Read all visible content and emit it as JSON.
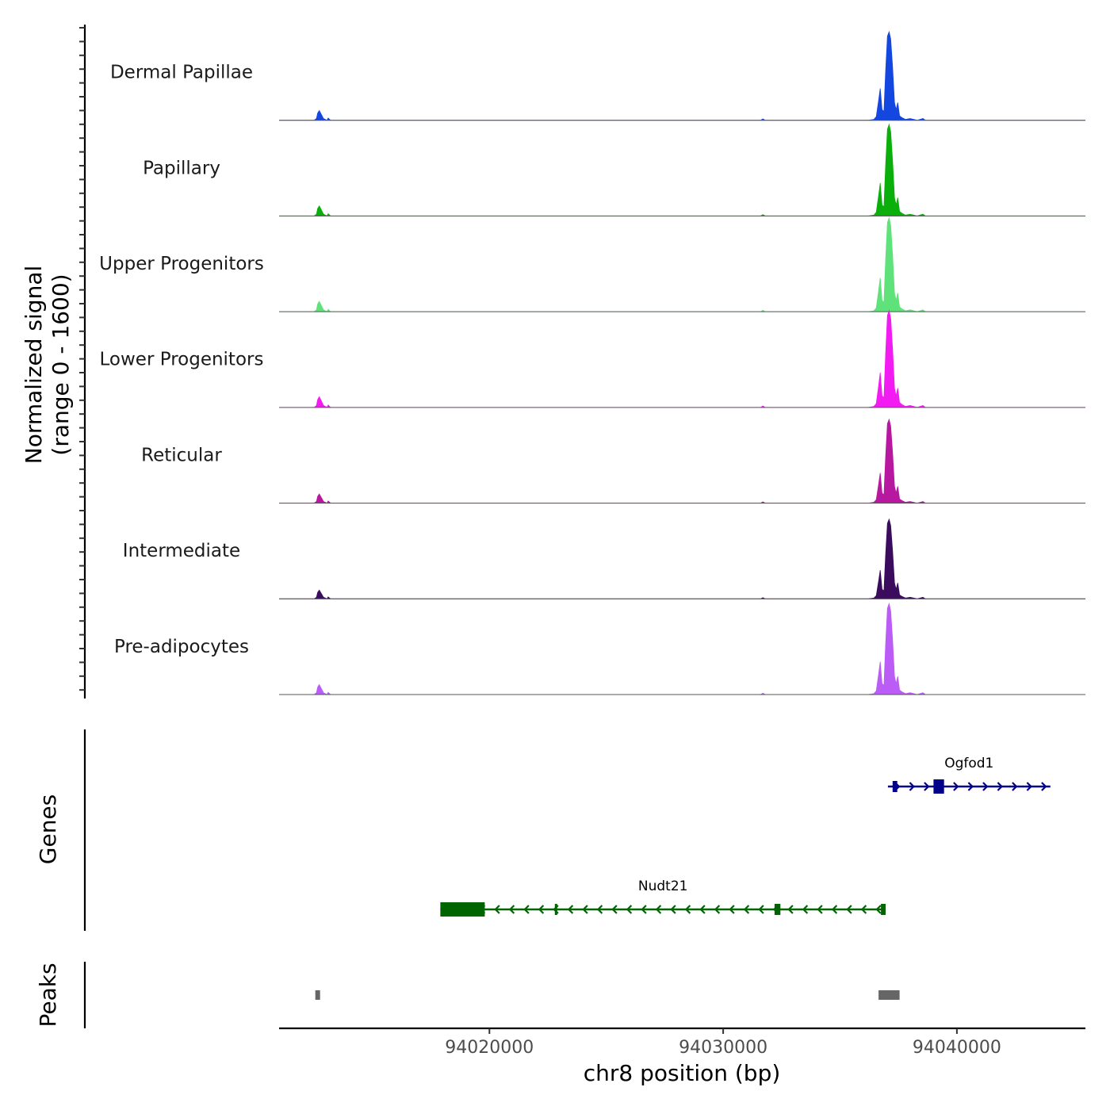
{
  "chart_data": {
    "type": "coverage",
    "genome_region": {
      "chromosome": "chr8",
      "start": 94011000,
      "end": 94045500
    },
    "y_axis": {
      "title_line1": "Normalized signal",
      "title_line2": "(range 0 - 1600)",
      "range": [
        0,
        1600
      ]
    },
    "x_axis": {
      "title": "chr8 position (bp)",
      "ticks": [
        {
          "value": 94020000,
          "label": "94020000"
        },
        {
          "value": 94030000,
          "label": "94030000"
        },
        {
          "value": 94040000,
          "label": "94040000"
        }
      ]
    },
    "tracks": [
      {
        "name": "Dermal Papillae",
        "color": "#1446E0",
        "peak_max": 1480
      },
      {
        "name": "Papillary",
        "color": "#0BAF0B",
        "peak_max": 1530
      },
      {
        "name": "Upper Progenitors",
        "color": "#5FE27A",
        "peak_max": 1570
      },
      {
        "name": "Lower Progenitors",
        "color": "#F21CF2",
        "peak_max": 1620
      },
      {
        "name": "Reticular",
        "color": "#B8189F",
        "peak_max": 1400
      },
      {
        "name": "Intermediate",
        "color": "#3B0B5E",
        "peak_max": 1330
      },
      {
        "name": "Pre-adipocytes",
        "color": "#BB5CF7",
        "peak_max": 1520
      }
    ],
    "signal_profile": [
      {
        "pos": 94011000,
        "value": 0.0
      },
      {
        "pos": 94012500,
        "value": 0.0
      },
      {
        "pos": 94012600,
        "value": 0.02
      },
      {
        "pos": 94012650,
        "value": 0.08
      },
      {
        "pos": 94012720,
        "value": 0.11
      },
      {
        "pos": 94012800,
        "value": 0.07
      },
      {
        "pos": 94012900,
        "value": 0.02
      },
      {
        "pos": 94013050,
        "value": 0.0
      },
      {
        "pos": 94013100,
        "value": 0.025
      },
      {
        "pos": 94013200,
        "value": 0.0
      },
      {
        "pos": 94031600,
        "value": 0.0
      },
      {
        "pos": 94031700,
        "value": 0.015
      },
      {
        "pos": 94031800,
        "value": 0.0
      },
      {
        "pos": 94036200,
        "value": 0.0
      },
      {
        "pos": 94036450,
        "value": 0.01
      },
      {
        "pos": 94036550,
        "value": 0.04
      },
      {
        "pos": 94036650,
        "value": 0.22
      },
      {
        "pos": 94036720,
        "value": 0.36
      },
      {
        "pos": 94036800,
        "value": 0.12
      },
      {
        "pos": 94036880,
        "value": 0.1
      },
      {
        "pos": 94036950,
        "value": 0.55
      },
      {
        "pos": 94037030,
        "value": 0.95
      },
      {
        "pos": 94037100,
        "value": 1.0
      },
      {
        "pos": 94037170,
        "value": 0.92
      },
      {
        "pos": 94037250,
        "value": 0.6
      },
      {
        "pos": 94037330,
        "value": 0.2
      },
      {
        "pos": 94037400,
        "value": 0.12
      },
      {
        "pos": 94037470,
        "value": 0.2
      },
      {
        "pos": 94037550,
        "value": 0.05
      },
      {
        "pos": 94037650,
        "value": 0.03
      },
      {
        "pos": 94037800,
        "value": 0.01
      },
      {
        "pos": 94038000,
        "value": 0.02
      },
      {
        "pos": 94038300,
        "value": 0.0
      },
      {
        "pos": 94038550,
        "value": 0.02
      },
      {
        "pos": 94038650,
        "value": 0.0
      },
      {
        "pos": 94045500,
        "value": 0.0
      }
    ],
    "genes_track": {
      "title": "Genes",
      "genes": [
        {
          "name": "Ogfod1",
          "strand": "+",
          "color": "#00008B",
          "row": 1,
          "start": 94037050,
          "end": 94044000,
          "exons": [
            {
              "start": 94037250,
              "end": 94037450,
              "size": "small"
            },
            {
              "start": 94039000,
              "end": 94039450,
              "size": "big"
            }
          ]
        },
        {
          "name": "Nudt21",
          "strand": "-",
          "color": "#006400",
          "row": 2,
          "start": 94017900,
          "end": 94036950,
          "exons": [
            {
              "start": 94017900,
              "end": 94019800,
              "size": "big"
            },
            {
              "start": 94022800,
              "end": 94022880,
              "size": "small"
            },
            {
              "start": 94032200,
              "end": 94032450,
              "size": "small"
            },
            {
              "start": 94036750,
              "end": 94036950,
              "size": "small"
            }
          ]
        }
      ]
    },
    "peaks_track": {
      "title": "Peaks",
      "color": "#666666",
      "peaks": [
        {
          "start": 94012550,
          "end": 94012750
        },
        {
          "start": 94036650,
          "end": 94037550
        }
      ]
    }
  }
}
